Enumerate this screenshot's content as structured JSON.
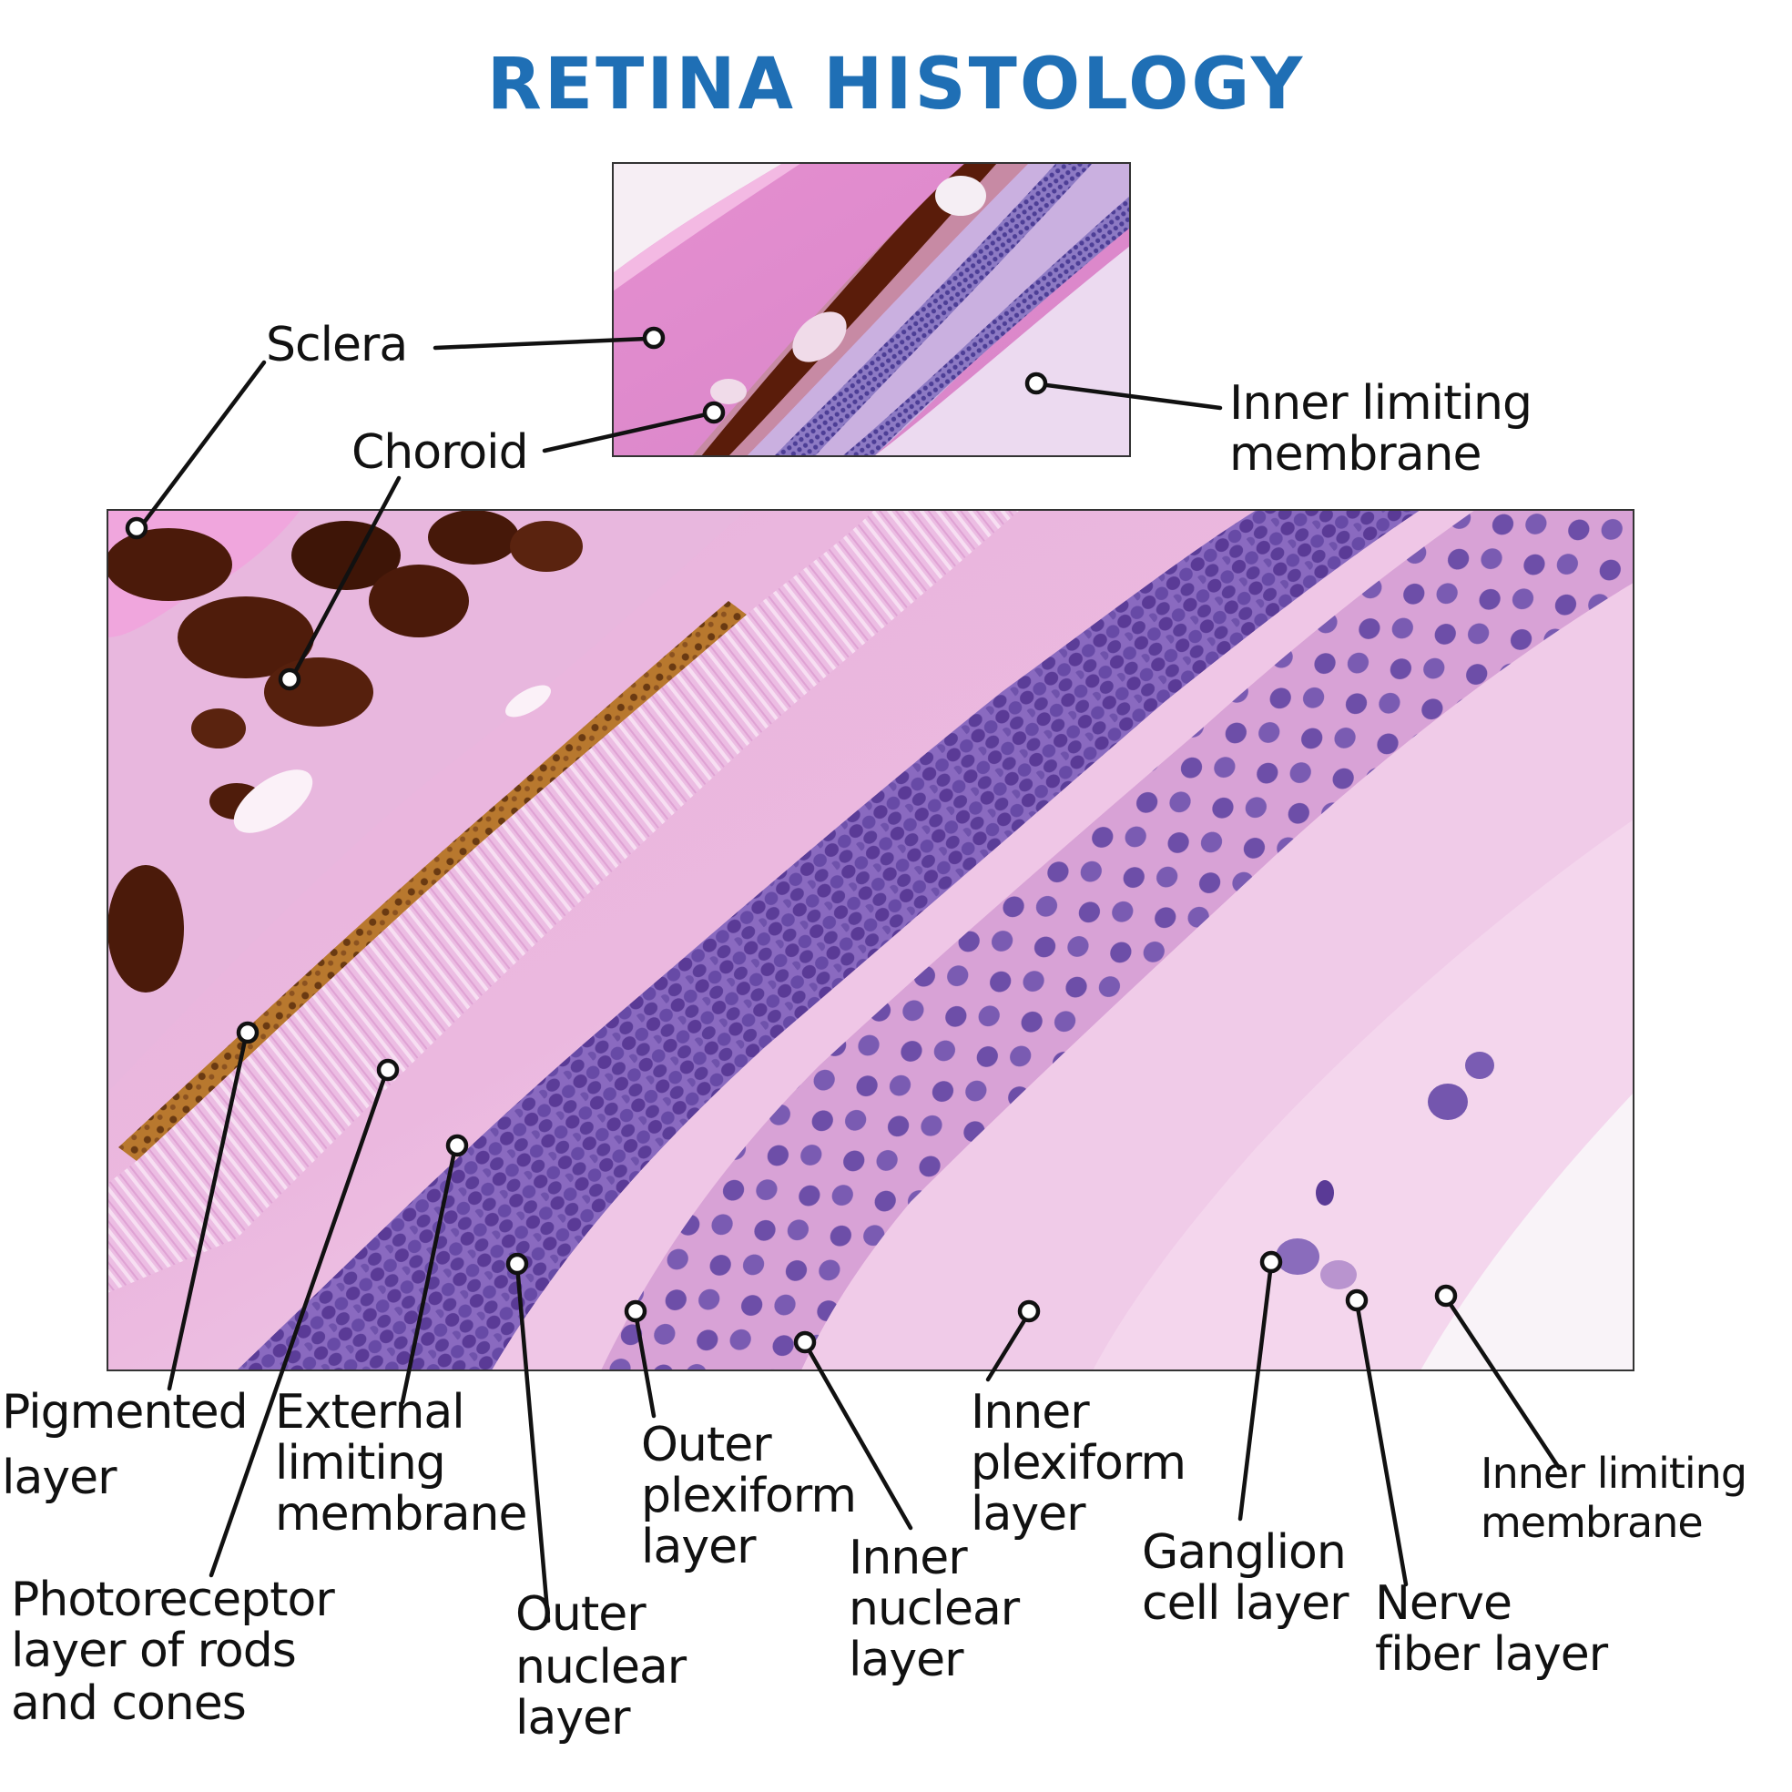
{
  "title": "RETINA HISTOLOGY",
  "colors": {
    "title": "#1f6fb5",
    "tissue_pink": "#e7a6d8",
    "tissue_light": "#f1cfe9",
    "nuclei_purple": "#6b4aa4",
    "pigment_brown": "#4a1d0c"
  },
  "images": {
    "overview": "Low-magnification H&E micrograph of retina and eye wall",
    "detail": "High-magnification H&E micrograph of retinal layers"
  },
  "labels": {
    "sclera": "Sclera",
    "choroid": "Choroid",
    "inner_limiting_top": [
      "Inner limiting",
      "membrane"
    ],
    "pigmented": [
      "Pigmented",
      "layer"
    ],
    "external_limiting": [
      "External",
      "limiting",
      "membrane"
    ],
    "photoreceptor": [
      "Photoreceptor",
      "layer of rods",
      "and cones"
    ],
    "outer_nuclear": [
      "Outer",
      "nuclear",
      "layer"
    ],
    "outer_plexiform": [
      "Outer",
      "plexiform",
      "layer"
    ],
    "inner_nuclear": [
      "Inner",
      "nuclear",
      "layer"
    ],
    "inner_plexiform": [
      "Inner",
      "plexiform",
      "layer"
    ],
    "ganglion": [
      "Ganglion",
      "cell layer"
    ],
    "nerve_fiber": [
      "Nerve",
      "fiber layer"
    ],
    "inner_limiting_bottom": [
      "Inner limiting",
      "membrane"
    ]
  }
}
